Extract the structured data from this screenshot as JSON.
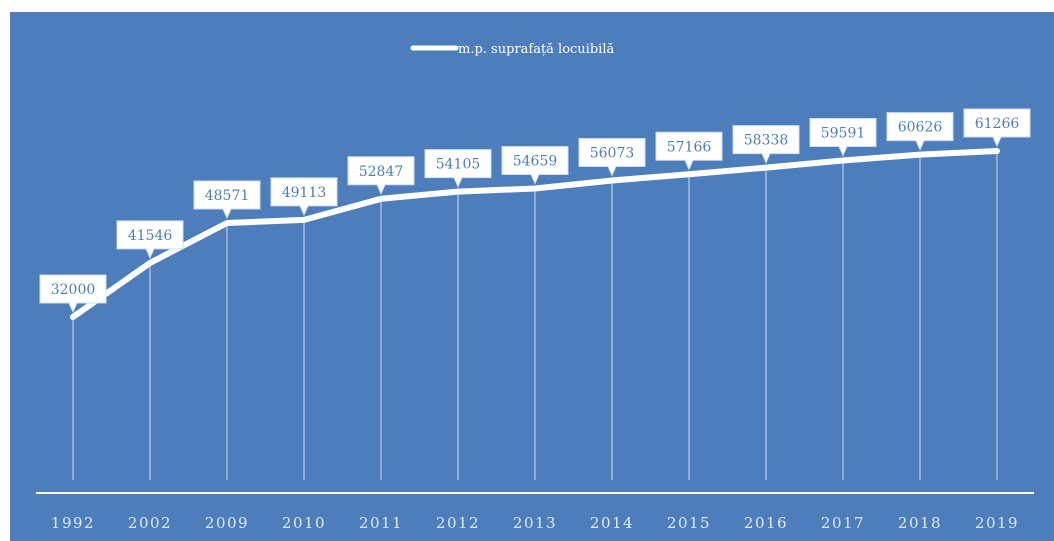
{
  "chart_data": {
    "type": "line",
    "title": "",
    "xlabel": "",
    "ylabel": "",
    "categories": [
      "1992",
      "2002",
      "2009",
      "2010",
      "2011",
      "2012",
      "2013",
      "2014",
      "2015",
      "2016",
      "2017",
      "2018",
      "2019"
    ],
    "series": [
      {
        "name": "m.p. suprafață locuibilă",
        "values": [
          32000,
          41546,
          48571,
          49113,
          52847,
          54105,
          54659,
          56073,
          57166,
          58338,
          59591,
          60626,
          61266
        ],
        "color": "#ffffff"
      }
    ],
    "data_labels": [
      "32000",
      "41546",
      "48571",
      "49113",
      "52847",
      "54105",
      "54659",
      "56073",
      "57166",
      "58338",
      "59591",
      "60626",
      "61266"
    ],
    "legend_position": "top-center",
    "grid": false,
    "background_color": "#4d7ebb",
    "label_box_color": "#ffffff",
    "label_text_color": "#4d7ebb",
    "axis_color": "#ffffff"
  }
}
